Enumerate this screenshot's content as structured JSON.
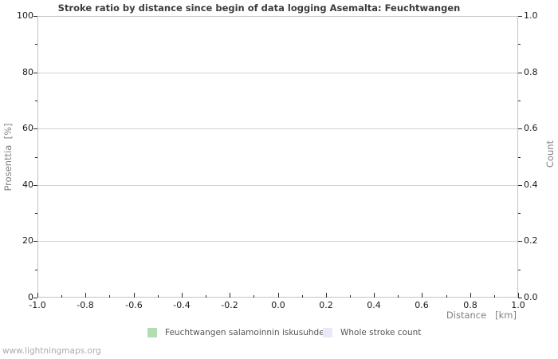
{
  "title": "Stroke ratio by distance since begin of data logging Asemalta: Feuchtwangen",
  "watermark": "www.lightningmaps.org",
  "chart_data": {
    "type": "line",
    "title": "Stroke ratio by distance since begin of data logging Asemalta: Feuchtwangen",
    "x_axis": {
      "label": "Distance   [km]",
      "range": [
        -1.0,
        1.0
      ],
      "major_ticks": [
        "-1.0",
        "-0.8",
        "-0.6",
        "-0.4",
        "-0.2",
        "0.0",
        "0.2",
        "0.4",
        "0.6",
        "0.8",
        "1.0"
      ],
      "minor_tick_step": 0.1
    },
    "y_axis_left": {
      "label": "Prosenttia  [%]",
      "range": [
        0,
        100
      ],
      "major_ticks": [
        "0",
        "20",
        "40",
        "60",
        "80",
        "100"
      ],
      "minor_tick_step": 10
    },
    "y_axis_right": {
      "label": "Count",
      "range": [
        0.0,
        1.0
      ],
      "major_ticks": [
        "0.0",
        "0.2",
        "0.4",
        "0.6",
        "0.8",
        "1.0"
      ],
      "minor_tick_step": 0.1
    },
    "grid": "horizontal-major-only",
    "legend_position": "bottom-center",
    "series": [
      {
        "name": "Feuchtwangen salamoinnin iskusuhde",
        "color": "#b2ddb2",
        "values": []
      },
      {
        "name": "Whole stroke count",
        "color": "#e8e8f7",
        "values": []
      }
    ]
  },
  "colors": {
    "frame": "#c4c4c4",
    "gridline": "#d2d2d2",
    "tick": "#2a2a2a",
    "title_text": "#3c3c3c",
    "axis_title_text": "#808080",
    "watermark_text": "#aaaaaa"
  }
}
